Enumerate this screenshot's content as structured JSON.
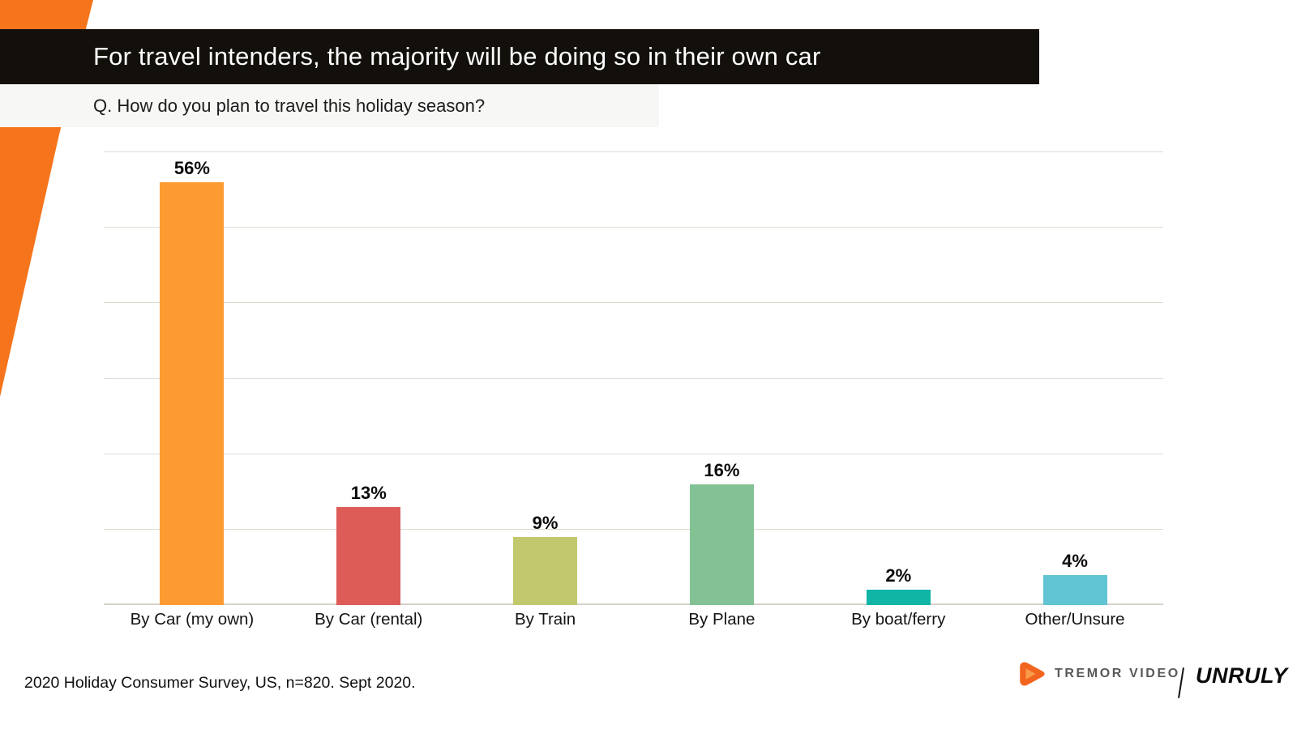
{
  "slide": {
    "title": "For travel intenders, the majority will be doing so in their own car",
    "subtitle": "Q. How do you plan to travel this holiday season?",
    "source": "2020 Holiday Consumer Survey, US, n=820. Sept 2020.",
    "accent_color": "#F6741B",
    "title_bar_color": "#13100B",
    "subtitle_bar_color": "#F7F7F5"
  },
  "brand": {
    "tremor_label": "TREMOR VIDEO",
    "unruly_label": "UNRULY",
    "divider": "/",
    "play_icon_color": "#F2651E",
    "play_icon_inner_color": "#F89B4B",
    "tremor_text_color": "#58595B"
  },
  "chart_data": {
    "type": "bar",
    "categories": [
      "By Car (my own)",
      "By Car (rental)",
      "By Train",
      "By Plane",
      "By boat/ferry",
      "Other/Unsure"
    ],
    "values": [
      56,
      13,
      9,
      16,
      2,
      4
    ],
    "value_labels": [
      "56%",
      "13%",
      "9%",
      "16%",
      "2%",
      "4%"
    ],
    "bar_colors": [
      "#FB9B32",
      "#DD5C57",
      "#C2C86D",
      "#83C294",
      "#10B5A5",
      "#60C4D3"
    ],
    "title": "",
    "xlabel": "",
    "ylabel": "",
    "ylim": [
      0,
      60
    ],
    "gridline_step": 10,
    "grid": "horizontal-only",
    "gridline_color": "#DEDBD2",
    "legend": "none",
    "data_labels": "above-bars"
  }
}
